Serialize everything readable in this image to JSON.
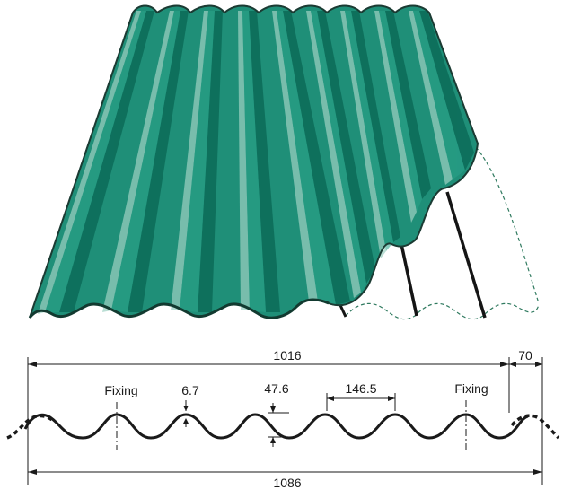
{
  "diagram": {
    "colors": {
      "sheet_base": "#1f8f78",
      "sheet_dark": "#0f6f5c",
      "sheet_light": "#8fc7b8",
      "outline": "#1b3b33",
      "profile_line": "#1a1a1a",
      "dashed_outline": "#2f7a5f"
    },
    "labels": {
      "overall_cover_width": "1016",
      "overall_width": "1086",
      "side_lap": "70",
      "pitch": "146.5",
      "depth": "47.6",
      "thickness_mark": "6.7",
      "fixing_left": "Fixing",
      "fixing_right": "Fixing"
    }
  }
}
